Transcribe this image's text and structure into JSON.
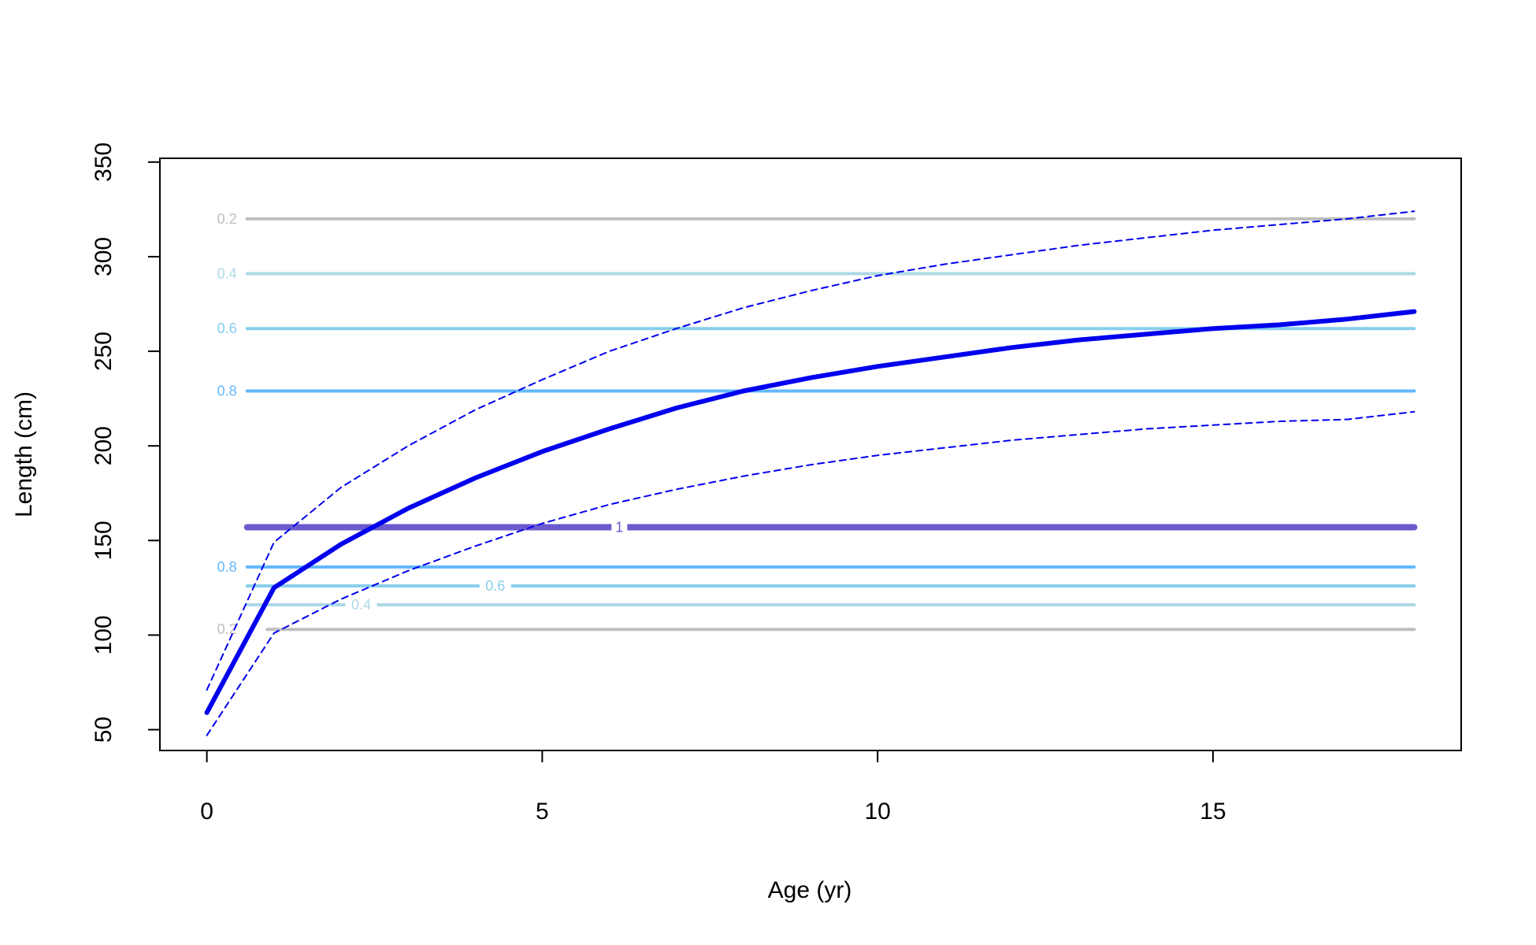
{
  "chart_data": {
    "type": "line",
    "xlabel": "Age (yr)",
    "ylabel": "Length (cm)",
    "xlim": [
      -0.7,
      18.7
    ],
    "ylim": [
      39,
      352
    ],
    "x_ticks": [
      0,
      5,
      10,
      15
    ],
    "y_ticks": [
      50,
      100,
      150,
      200,
      250,
      300,
      350
    ],
    "grid": false,
    "colors": {
      "growth": "#0000ee",
      "contour_0_2": "#bebebe",
      "contour_0_4": "#add8e6",
      "contour_0_6": "#87ceeb",
      "contour_0_8": "#63b8ff",
      "contour_1": "#6a5acd"
    },
    "series": [
      {
        "style": "solid",
        "x": [
          0,
          1,
          2,
          3,
          4,
          5,
          6,
          7,
          8,
          9,
          10,
          11,
          12,
          13,
          14,
          15,
          16,
          17,
          18
        ],
        "y": [
          59,
          125,
          148,
          167,
          183,
          197,
          209,
          220,
          229,
          236,
          242,
          247,
          252,
          256,
          259,
          262,
          264,
          267,
          271
        ]
      },
      {
        "style": "dashed",
        "x": [
          0,
          1,
          2,
          3,
          4,
          5,
          6,
          7,
          8,
          9,
          10,
          11,
          12,
          13,
          14,
          15,
          16,
          17,
          18
        ],
        "y": [
          71,
          149,
          178,
          200,
          219,
          235,
          250,
          262,
          273,
          282,
          290,
          296,
          301,
          306,
          310,
          314,
          317,
          320,
          324
        ]
      },
      {
        "style": "dashed",
        "x": [
          0,
          1,
          2,
          3,
          4,
          5,
          6,
          7,
          8,
          9,
          10,
          11,
          12,
          13,
          14,
          15,
          16,
          17,
          18
        ],
        "y": [
          47,
          101,
          119,
          134,
          147,
          159,
          169,
          177,
          184,
          190,
          195,
          199,
          203,
          206,
          209,
          211,
          213,
          214,
          218
        ]
      }
    ],
    "contours": [
      {
        "label": "0.2",
        "y": 320,
        "x_start": 0.6,
        "label_x": 0.3,
        "color_key": "contour_0_2",
        "width": 4
      },
      {
        "label": "0.4",
        "y": 291,
        "x_start": 0.6,
        "label_x": 0.3,
        "color_key": "contour_0_4",
        "width": 4
      },
      {
        "label": "0.6",
        "y": 262,
        "x_start": 0.6,
        "label_x": 0.3,
        "color_key": "contour_0_6",
        "width": 4
      },
      {
        "label": "0.8",
        "y": 229,
        "x_start": 0.6,
        "label_x": 0.3,
        "color_key": "contour_0_8",
        "width": 4
      },
      {
        "label": "1",
        "y": 157,
        "x_start": 0.6,
        "label_x": 6.15,
        "color_key": "contour_1",
        "width": 8
      },
      {
        "label": "0.8",
        "y": 136,
        "x_start": 0.6,
        "label_x": 0.3,
        "color_key": "contour_0_8",
        "width": 4
      },
      {
        "label": "0.6",
        "y": 126,
        "x_start": 0.6,
        "label_x": 4.3,
        "color_key": "contour_0_6",
        "width": 4
      },
      {
        "label": "0.4",
        "y": 116,
        "x_start": 0.6,
        "label_x": 2.3,
        "color_key": "contour_0_4",
        "width": 4
      },
      {
        "label": "0.2",
        "y": 103,
        "x_start": 0.9,
        "label_x": 0.3,
        "color_key": "contour_0_2",
        "width": 4
      }
    ]
  }
}
